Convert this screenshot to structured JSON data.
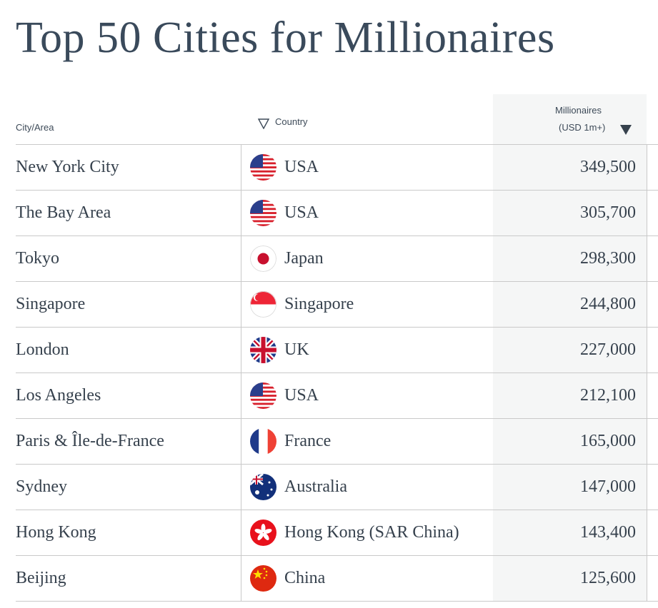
{
  "title": "Top 50 Cities for Millionaires",
  "headers": {
    "city": "City/Area",
    "country": "Country",
    "millionaires_line1": "Millionaires",
    "millionaires_line2": "(USD 1m+)"
  },
  "sort": {
    "column": "Millionaires",
    "direction": "descending"
  },
  "rows": [
    {
      "city": "New York City",
      "country": "USA",
      "flag": "us",
      "millionaires": "349,500"
    },
    {
      "city": "The Bay Area",
      "country": "USA",
      "flag": "us",
      "millionaires": "305,700"
    },
    {
      "city": "Tokyo",
      "country": "Japan",
      "flag": "jp",
      "millionaires": "298,300"
    },
    {
      "city": "Singapore",
      "country": "Singapore",
      "flag": "sg",
      "millionaires": "244,800"
    },
    {
      "city": "London",
      "country": "UK",
      "flag": "uk",
      "millionaires": "227,000"
    },
    {
      "city": "Los Angeles",
      "country": "USA",
      "flag": "us",
      "millionaires": "212,100"
    },
    {
      "city": "Paris & Île-de-France",
      "country": "France",
      "flag": "fr",
      "millionaires": "165,000"
    },
    {
      "city": "Sydney",
      "country": "Australia",
      "flag": "au",
      "millionaires": "147,000"
    },
    {
      "city": "Hong Kong",
      "country": "Hong Kong (SAR China)",
      "flag": "hk",
      "millionaires": "143,400"
    },
    {
      "city": "Beijing",
      "country": "China",
      "flag": "cn",
      "millionaires": "125,600"
    }
  ]
}
